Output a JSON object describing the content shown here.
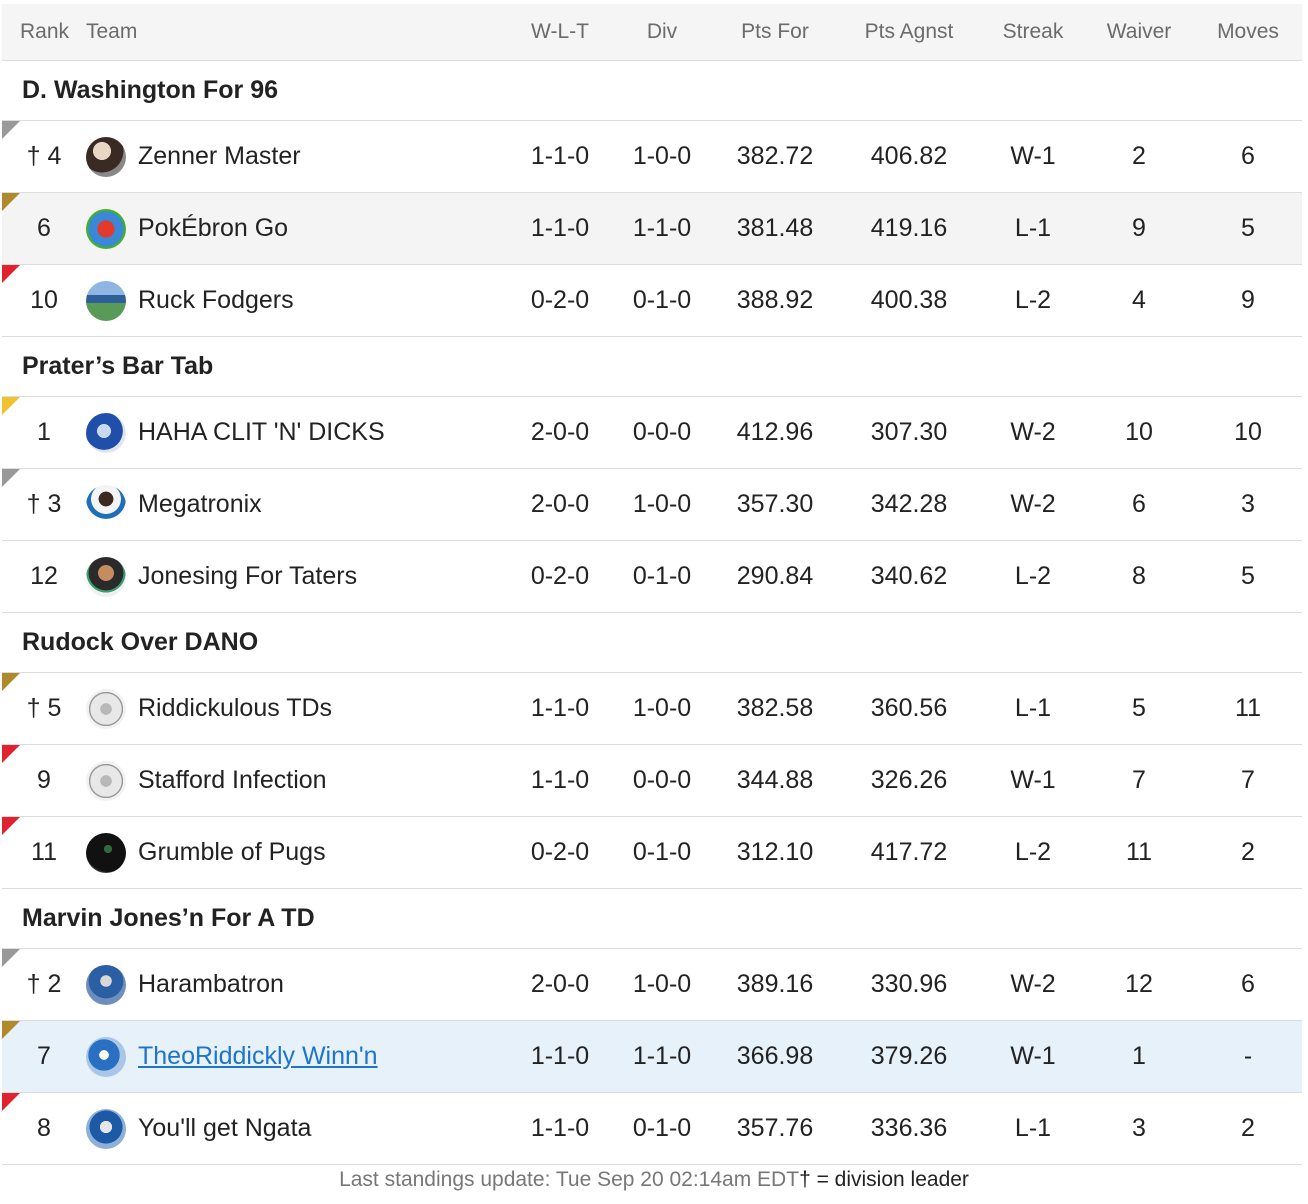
{
  "headers": {
    "rank": "Rank",
    "team": "Team",
    "wlt": "W-L-T",
    "div": "Div",
    "pts_for": "Pts For",
    "pts_agnst": "Pts Agnst",
    "streak": "Streak",
    "waiver": "Waiver",
    "moves": "Moves"
  },
  "colors": {
    "gold": "#f2c12e",
    "bronze": "#b0892a",
    "gray": "#999999",
    "red": "#e0212e",
    "link": "#1e74c8",
    "highlight_row": "#e6f1fa"
  },
  "divisions": [
    {
      "name": "D. Washington For 96",
      "teams": [
        {
          "rank": "† 4",
          "name": "Zenner Master",
          "wlt": "1-1-0",
          "div": "1-0-0",
          "pf": "382.72",
          "pa": "406.82",
          "streak": "W-1",
          "waiver": "2",
          "moves": "6",
          "marker": "gray"
        },
        {
          "rank": "6",
          "name": "PokÉbron Go",
          "wlt": "1-1-0",
          "div": "1-1-0",
          "pf": "381.48",
          "pa": "419.16",
          "streak": "L-1",
          "waiver": "9",
          "moves": "5",
          "marker": "bronze"
        },
        {
          "rank": "10",
          "name": "Ruck Fodgers",
          "wlt": "0-2-0",
          "div": "0-1-0",
          "pf": "388.92",
          "pa": "400.38",
          "streak": "L-2",
          "waiver": "4",
          "moves": "9",
          "marker": "red"
        }
      ]
    },
    {
      "name": "Prater’s Bar Tab",
      "teams": [
        {
          "rank": "1",
          "name": "HAHA CLIT 'N' DICKS",
          "wlt": "2-0-0",
          "div": "0-0-0",
          "pf": "412.96",
          "pa": "307.30",
          "streak": "W-2",
          "waiver": "10",
          "moves": "10",
          "marker": "gold"
        },
        {
          "rank": "† 3",
          "name": "Megatronix",
          "wlt": "2-0-0",
          "div": "1-0-0",
          "pf": "357.30",
          "pa": "342.28",
          "streak": "W-2",
          "waiver": "6",
          "moves": "3",
          "marker": "gray"
        },
        {
          "rank": "12",
          "name": "Jonesing For Taters",
          "wlt": "0-2-0",
          "div": "0-1-0",
          "pf": "290.84",
          "pa": "340.62",
          "streak": "L-2",
          "waiver": "8",
          "moves": "5",
          "marker": "none"
        }
      ]
    },
    {
      "name": "Rudock Over DANO",
      "teams": [
        {
          "rank": "† 5",
          "name": "Riddickulous TDs",
          "wlt": "1-1-0",
          "div": "1-0-0",
          "pf": "382.58",
          "pa": "360.56",
          "streak": "L-1",
          "waiver": "5",
          "moves": "11",
          "marker": "bronze"
        },
        {
          "rank": "9",
          "name": "Stafford Infection",
          "wlt": "1-1-0",
          "div": "0-0-0",
          "pf": "344.88",
          "pa": "326.26",
          "streak": "W-1",
          "waiver": "7",
          "moves": "7",
          "marker": "red"
        },
        {
          "rank": "11",
          "name": "Grumble of Pugs",
          "wlt": "0-2-0",
          "div": "0-1-0",
          "pf": "312.10",
          "pa": "417.72",
          "streak": "L-2",
          "waiver": "11",
          "moves": "2",
          "marker": "red"
        }
      ]
    },
    {
      "name": "Marvin Jones’n For A TD",
      "teams": [
        {
          "rank": "† 2",
          "name": "Harambatron",
          "wlt": "2-0-0",
          "div": "1-0-0",
          "pf": "389.16",
          "pa": "330.96",
          "streak": "W-2",
          "waiver": "12",
          "moves": "6",
          "marker": "gray"
        },
        {
          "rank": "7",
          "name": "TheoRiddickly Winn'n",
          "wlt": "1-1-0",
          "div": "1-1-0",
          "pf": "366.98",
          "pa": "379.26",
          "streak": "W-1",
          "waiver": "1",
          "moves": "-",
          "marker": "bronze"
        },
        {
          "rank": "8",
          "name": "You'll get Ngata",
          "wlt": "1-1-0",
          "div": "0-1-0",
          "pf": "357.76",
          "pa": "336.36",
          "streak": "L-1",
          "waiver": "3",
          "moves": "2",
          "marker": "red"
        }
      ]
    }
  ],
  "footer": {
    "update": "Last standings update: Tue Sep 20 02:14am EDT",
    "legend": "† = division leader"
  }
}
